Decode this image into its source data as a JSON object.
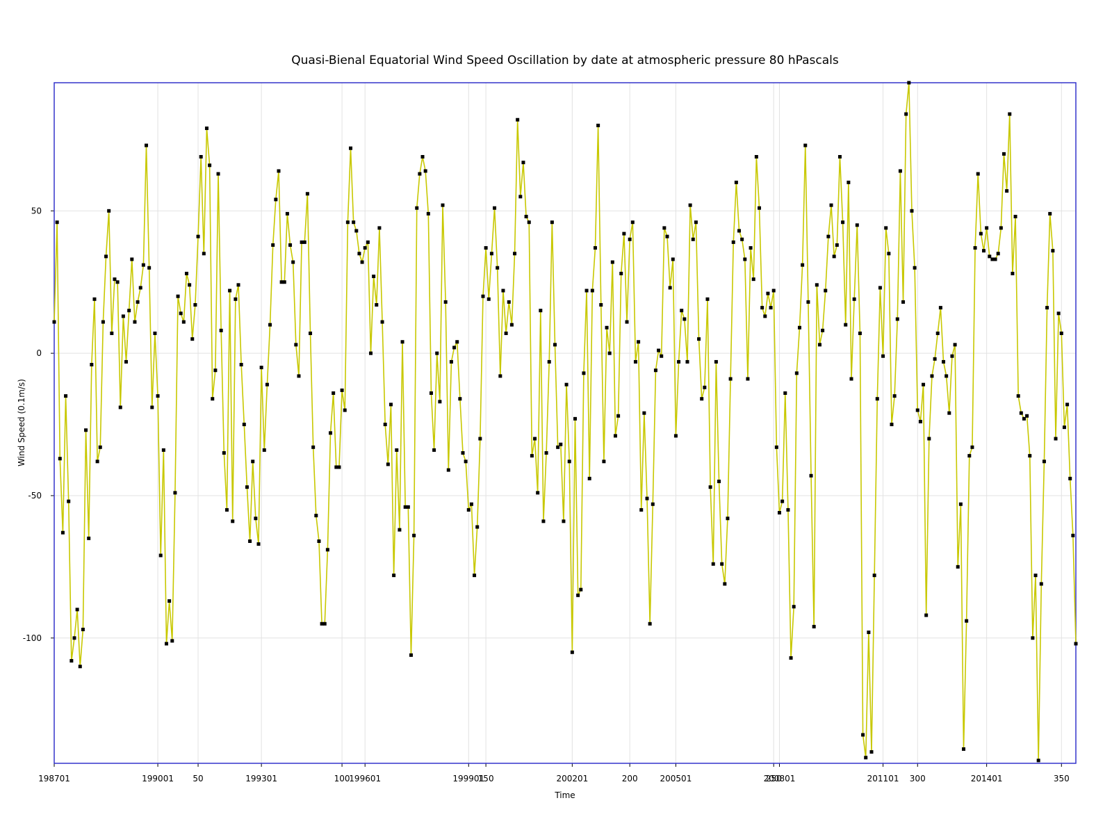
{
  "chart_data": {
    "type": "line",
    "title": "Quasi-Bienal Equatorial Wind Speed Oscillation by date at atmospheric pressure 80 hPascals",
    "xlabel": "Time",
    "ylabel": "Wind Speed (0.1m/s)",
    "series": [
      {
        "name": "Wind Speed",
        "color": "#c8c800",
        "marker_color": "#000000",
        "values": [
          11,
          46,
          -37,
          -63,
          -15,
          -52,
          -108,
          -100,
          -90,
          -110,
          -97,
          -27,
          -65,
          -4,
          19,
          -38,
          -33,
          11,
          34,
          50,
          7,
          26,
          25,
          -19,
          13,
          -3,
          15,
          33,
          11,
          18,
          23,
          31,
          73,
          30,
          -19,
          7,
          -15,
          -71,
          -34,
          -102,
          -87,
          -101,
          -49,
          20,
          14,
          11,
          28,
          24,
          5,
          17,
          41,
          69,
          35,
          79,
          66,
          -16,
          -6,
          63,
          8,
          -35,
          -55,
          22,
          -59,
          19,
          24,
          -4,
          -25,
          -47,
          -66,
          -38,
          -58,
          -67,
          -5,
          -34,
          -11,
          10,
          38,
          54,
          64,
          25,
          25,
          49,
          38,
          32,
          3,
          -8,
          39,
          39,
          56,
          7,
          -33,
          -57,
          -66,
          -95,
          -95,
          -69,
          -28,
          -14,
          -40,
          -40,
          -13,
          -20,
          46,
          72,
          46,
          43,
          35,
          32,
          37,
          39,
          0,
          27,
          17,
          44,
          11,
          -25,
          -39,
          -18,
          -78,
          -34,
          -62,
          4,
          -54,
          -54,
          -106,
          -64,
          51,
          63,
          69,
          64,
          49,
          -14,
          -34,
          0,
          -17,
          52,
          18,
          -41,
          -3,
          2,
          4,
          -16,
          -35,
          -38,
          -55,
          -53,
          -78,
          -61,
          -30,
          20,
          37,
          19,
          35,
          51,
          30,
          -8,
          22,
          7,
          18,
          10,
          35,
          82,
          55,
          67,
          48,
          46,
          -36,
          -30,
          -49,
          15,
          -59,
          -35,
          -3,
          46,
          3,
          -33,
          -32,
          -59,
          -11,
          -38,
          -105,
          -23,
          -85,
          -83,
          -7,
          22,
          -44,
          22,
          37,
          80,
          17,
          -38,
          9,
          0,
          32,
          -29,
          -22,
          28,
          42,
          11,
          40,
          46,
          -3,
          4,
          -55,
          -21,
          -51,
          -95,
          -53,
          -6,
          1,
          -1,
          44,
          41,
          23,
          33,
          -29,
          -3,
          15,
          12,
          -3,
          52,
          40,
          46,
          5,
          -16,
          -12,
          19,
          -47,
          -74,
          -3,
          -45,
          -74,
          -81,
          -58,
          -9,
          39,
          60,
          43,
          40,
          33,
          -9,
          37,
          26,
          69,
          51,
          16,
          13,
          21,
          16,
          22,
          -33,
          -56,
          -52,
          -14,
          -55,
          -107,
          -89,
          -7,
          9,
          31,
          73,
          18,
          -43,
          -96,
          24,
          3,
          8,
          22,
          41,
          52,
          34,
          38,
          69,
          46,
          10,
          60,
          -9,
          19,
          45,
          7,
          -134,
          -142,
          -98,
          -140,
          -78,
          -16,
          23,
          -1,
          44,
          35,
          -25,
          -15,
          12,
          64,
          18,
          84,
          95,
          50,
          30,
          -20,
          -24,
          -11,
          -92,
          -30,
          -8,
          -2,
          7,
          16,
          -3,
          -8,
          -21,
          -1,
          3,
          -75,
          -53,
          -139,
          -94,
          -36,
          -33,
          37,
          63,
          42,
          36,
          44,
          34,
          33,
          33,
          35,
          44,
          70,
          57,
          84,
          28,
          48,
          -15,
          -21,
          -23,
          -22,
          -36,
          -100,
          -78,
          -143,
          -81,
          -38,
          16,
          49,
          36,
          -30,
          14,
          7,
          -26,
          -18,
          -44,
          -64,
          -102
        ]
      }
    ],
    "xlim": [
      0,
      355
    ],
    "xticks": [
      {
        "value": 0,
        "label": "198701"
      },
      {
        "value": 36,
        "label": "199001"
      },
      50,
      {
        "value": 72,
        "label": "199301"
      },
      100,
      {
        "value": 108,
        "label": "199601"
      },
      {
        "value": 144,
        "label": "199901"
      },
      150,
      {
        "value": 180,
        "label": "200201"
      },
      200,
      {
        "value": 216,
        "label": "200501"
      },
      250,
      {
        "value": 252,
        "label": "200801"
      },
      {
        "value": 288,
        "label": "201101"
      },
      300,
      {
        "value": 324,
        "label": "201401"
      },
      350
    ],
    "ylim": [
      -144,
      95
    ],
    "yticks": [
      -100,
      -50,
      0,
      50
    ],
    "grid": true,
    "border_color": "#3333cc"
  }
}
